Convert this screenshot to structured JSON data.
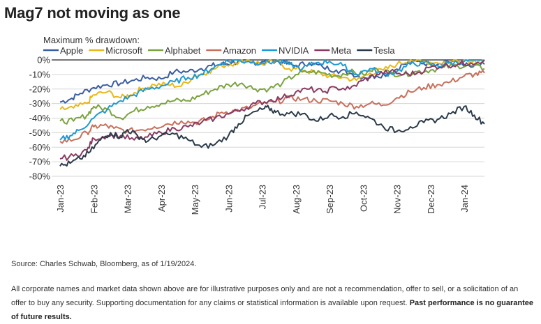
{
  "title": "Mag7 not moving as one",
  "source": "Source: Charles Schwab, Bloomberg, as of 1/19/2024.",
  "disclaimer": {
    "text": "All corporate names and market data shown above are for illustrative purposes only and are not a recommendation, offer to sell, or a solicitation of an offer to buy any security. Supporting documentation for any claims or statistical information is available upon request.",
    "bold": "Past performance is no guarantee of future results."
  },
  "chart_data": {
    "type": "line",
    "title": "Mag7 not moving as one",
    "legend_title": "Maximum % drawdown:",
    "legend_position": "top",
    "ylabel": "",
    "xlabel": "",
    "ylim": [
      -80,
      0
    ],
    "y_ticks": [
      0,
      -10,
      -20,
      -30,
      -40,
      -50,
      -60,
      -70,
      -80
    ],
    "y_tick_labels": [
      "0%",
      "-10%",
      "-20%",
      "-30%",
      "-40%",
      "-50%",
      "-60%",
      "-70%",
      "-80%"
    ],
    "x_ticks": [
      "Jan-23",
      "Feb-23",
      "Mar-23",
      "Apr-23",
      "May-23",
      "Jun-23",
      "Jul-23",
      "Aug-23",
      "Sep-23",
      "Oct-23",
      "Nov-23",
      "Dec-23",
      "Jan-24"
    ],
    "x_range": [
      0,
      12.6
    ],
    "grid": "horizontal",
    "series": [
      {
        "name": "Apple",
        "color": "#3a5ea0",
        "points": [
          [
            0,
            -29
          ],
          [
            0.3,
            -27
          ],
          [
            0.6,
            -23
          ],
          [
            1,
            -19
          ],
          [
            1.4,
            -17
          ],
          [
            1.8,
            -16
          ],
          [
            2.2,
            -14
          ],
          [
            2.6,
            -12
          ],
          [
            3,
            -13
          ],
          [
            3.4,
            -8
          ],
          [
            3.8,
            -8
          ],
          [
            4.2,
            -6
          ],
          [
            4.5,
            -4
          ],
          [
            4.8,
            -3
          ],
          [
            5.1,
            -2
          ],
          [
            5.4,
            -1
          ],
          [
            5.7,
            -2
          ],
          [
            6,
            -1
          ],
          [
            6.3,
            0
          ],
          [
            6.6,
            -2
          ],
          [
            7,
            -4
          ],
          [
            7.4,
            -2
          ],
          [
            7.8,
            -5
          ],
          [
            8.2,
            -7
          ],
          [
            8.6,
            -9
          ],
          [
            9,
            -12
          ],
          [
            9.4,
            -11
          ],
          [
            9.8,
            -9
          ],
          [
            10.2,
            -3
          ],
          [
            10.6,
            -1
          ],
          [
            11,
            -3
          ],
          [
            11.4,
            -1
          ],
          [
            11.8,
            -1
          ],
          [
            12.2,
            -5
          ],
          [
            12.6,
            -3
          ]
        ]
      },
      {
        "name": "Microsoft",
        "color": "#e8b818",
        "points": [
          [
            0,
            -34
          ],
          [
            0.4,
            -33
          ],
          [
            0.8,
            -30
          ],
          [
            1,
            -24
          ],
          [
            1.4,
            -22
          ],
          [
            1.8,
            -26
          ],
          [
            2.1,
            -24
          ],
          [
            2.4,
            -20
          ],
          [
            2.8,
            -17
          ],
          [
            3.2,
            -17
          ],
          [
            3.6,
            -18
          ],
          [
            4,
            -11
          ],
          [
            4.4,
            -8
          ],
          [
            4.8,
            -4
          ],
          [
            5.2,
            -2
          ],
          [
            5.6,
            0
          ],
          [
            6,
            -3
          ],
          [
            6.4,
            -1
          ],
          [
            6.8,
            -6
          ],
          [
            7.2,
            -7
          ],
          [
            7.6,
            -9
          ],
          [
            8,
            -11
          ],
          [
            8.4,
            -12
          ],
          [
            8.8,
            -14
          ],
          [
            9.2,
            -9
          ],
          [
            9.6,
            -7
          ],
          [
            10,
            -3
          ],
          [
            10.4,
            0
          ],
          [
            10.8,
            -1
          ],
          [
            11.2,
            -2
          ],
          [
            11.6,
            -1
          ],
          [
            12,
            0
          ],
          [
            12.3,
            0
          ],
          [
            12.6,
            -1
          ]
        ]
      },
      {
        "name": "Alphabet",
        "color": "#7aa33e",
        "points": [
          [
            0,
            -42
          ],
          [
            0.4,
            -42
          ],
          [
            0.8,
            -38
          ],
          [
            1,
            -32
          ],
          [
            1.4,
            -34
          ],
          [
            1.8,
            -40
          ],
          [
            2.2,
            -35
          ],
          [
            2.6,
            -32
          ],
          [
            3,
            -30
          ],
          [
            3.4,
            -28
          ],
          [
            3.8,
            -28
          ],
          [
            4.2,
            -24
          ],
          [
            4.6,
            -20
          ],
          [
            5,
            -17
          ],
          [
            5.4,
            -16
          ],
          [
            5.8,
            -20
          ],
          [
            6.2,
            -20
          ],
          [
            6.6,
            -16
          ],
          [
            7,
            -10
          ],
          [
            7.4,
            -8
          ],
          [
            7.8,
            -9
          ],
          [
            8.2,
            -11
          ],
          [
            8.6,
            -8
          ],
          [
            9,
            -10
          ],
          [
            9.4,
            -6
          ],
          [
            9.8,
            -9
          ],
          [
            10.2,
            -10
          ],
          [
            10.6,
            -8
          ],
          [
            11,
            -7
          ],
          [
            11.4,
            -5
          ],
          [
            11.8,
            -4
          ],
          [
            12.2,
            -4
          ],
          [
            12.6,
            -6
          ]
        ]
      },
      {
        "name": "Amazon",
        "color": "#c8705c",
        "points": [
          [
            0,
            -56
          ],
          [
            0.4,
            -55
          ],
          [
            0.8,
            -50
          ],
          [
            1,
            -46
          ],
          [
            1.3,
            -45
          ],
          [
            1.6,
            -47
          ],
          [
            2,
            -49
          ],
          [
            2.4,
            -48
          ],
          [
            2.8,
            -46
          ],
          [
            3.2,
            -44
          ],
          [
            3.6,
            -42
          ],
          [
            4,
            -43
          ],
          [
            4.4,
            -41
          ],
          [
            4.8,
            -36
          ],
          [
            5.2,
            -35
          ],
          [
            5.6,
            -33
          ],
          [
            6,
            -30
          ],
          [
            6.4,
            -29
          ],
          [
            6.8,
            -26
          ],
          [
            7.2,
            -27
          ],
          [
            7.6,
            -28
          ],
          [
            8,
            -28
          ],
          [
            8.4,
            -30
          ],
          [
            8.8,
            -32
          ],
          [
            9.2,
            -30
          ],
          [
            9.6,
            -31
          ],
          [
            10,
            -26
          ],
          [
            10.4,
            -22
          ],
          [
            10.8,
            -19
          ],
          [
            11.2,
            -17
          ],
          [
            11.6,
            -15
          ],
          [
            12,
            -11
          ],
          [
            12.3,
            -10
          ],
          [
            12.6,
            -9
          ]
        ]
      },
      {
        "name": "NVIDIA",
        "color": "#1e9ad2",
        "points": [
          [
            0,
            -55
          ],
          [
            0.3,
            -52
          ],
          [
            0.6,
            -48
          ],
          [
            1,
            -40
          ],
          [
            1.4,
            -34
          ],
          [
            1.8,
            -28
          ],
          [
            2.2,
            -24
          ],
          [
            2.6,
            -20
          ],
          [
            3,
            -18
          ],
          [
            3.4,
            -15
          ],
          [
            3.8,
            -12
          ],
          [
            4.2,
            -10
          ],
          [
            4.5,
            -6
          ],
          [
            4.8,
            -2
          ],
          [
            5.2,
            0
          ],
          [
            5.6,
            -1
          ],
          [
            6,
            -2
          ],
          [
            6.4,
            -1
          ],
          [
            6.8,
            -3
          ],
          [
            7.2,
            -6
          ],
          [
            7.6,
            -2
          ],
          [
            8,
            -1
          ],
          [
            8.4,
            -4
          ],
          [
            8.8,
            -10
          ],
          [
            9.2,
            -6
          ],
          [
            9.6,
            -10
          ],
          [
            10,
            -8
          ],
          [
            10.4,
            -3
          ],
          [
            10.8,
            -2
          ],
          [
            11.2,
            -4
          ],
          [
            11.6,
            -2
          ],
          [
            12,
            -1
          ],
          [
            12.3,
            0
          ],
          [
            12.6,
            0
          ]
        ]
      },
      {
        "name": "Meta",
        "color": "#8a3a62",
        "points": [
          [
            0,
            -68
          ],
          [
            0.4,
            -66
          ],
          [
            0.8,
            -62
          ],
          [
            1,
            -54
          ],
          [
            1.4,
            -52
          ],
          [
            1.8,
            -52
          ],
          [
            2.2,
            -55
          ],
          [
            2.6,
            -53
          ],
          [
            3,
            -50
          ],
          [
            3.4,
            -47
          ],
          [
            3.8,
            -46
          ],
          [
            4.2,
            -43
          ],
          [
            4.6,
            -40
          ],
          [
            5,
            -37
          ],
          [
            5.4,
            -34
          ],
          [
            5.8,
            -30
          ],
          [
            6.2,
            -28
          ],
          [
            6.6,
            -26
          ],
          [
            7,
            -22
          ],
          [
            7.4,
            -20
          ],
          [
            7.8,
            -22
          ],
          [
            8.2,
            -19
          ],
          [
            8.6,
            -20
          ],
          [
            9,
            -14
          ],
          [
            9.4,
            -10
          ],
          [
            9.8,
            -8
          ],
          [
            10.2,
            -10
          ],
          [
            10.6,
            -9
          ],
          [
            11,
            -5
          ],
          [
            11.4,
            -4
          ],
          [
            11.8,
            -3
          ],
          [
            12.2,
            -2
          ],
          [
            12.6,
            0
          ]
        ]
      },
      {
        "name": "Tesla",
        "color": "#2b3a4a",
        "points": [
          [
            0,
            -73
          ],
          [
            0.3,
            -71
          ],
          [
            0.6,
            -68
          ],
          [
            0.9,
            -63
          ],
          [
            1.2,
            -55
          ],
          [
            1.5,
            -50
          ],
          [
            1.8,
            -53
          ],
          [
            2,
            -48
          ],
          [
            2.3,
            -52
          ],
          [
            2.6,
            -56
          ],
          [
            3,
            -52
          ],
          [
            3.4,
            -51
          ],
          [
            3.8,
            -55
          ],
          [
            4.2,
            -60
          ],
          [
            4.6,
            -58
          ],
          [
            5,
            -52
          ],
          [
            5.3,
            -44
          ],
          [
            5.6,
            -38
          ],
          [
            6,
            -34
          ],
          [
            6.2,
            -33
          ],
          [
            6.4,
            -36
          ],
          [
            6.8,
            -37
          ],
          [
            7.2,
            -37
          ],
          [
            7.6,
            -42
          ],
          [
            8,
            -38
          ],
          [
            8.4,
            -39
          ],
          [
            8.8,
            -36
          ],
          [
            9.2,
            -40
          ],
          [
            9.6,
            -46
          ],
          [
            10,
            -49
          ],
          [
            10.4,
            -46
          ],
          [
            10.8,
            -43
          ],
          [
            11.2,
            -41
          ],
          [
            11.6,
            -37
          ],
          [
            12,
            -32
          ],
          [
            12.3,
            -38
          ],
          [
            12.6,
            -44
          ]
        ]
      }
    ]
  }
}
